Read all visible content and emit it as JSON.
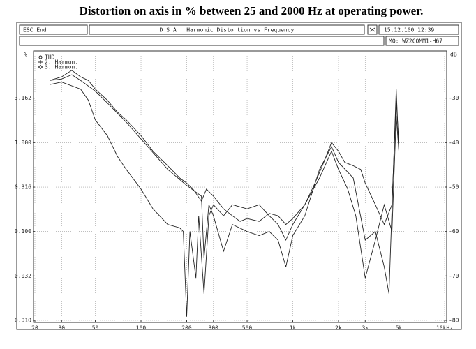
{
  "window": {
    "esc": "ESC End",
    "title": "D S A   Harmonic Distortion vs Frequency",
    "date": "15.12.100 12:39",
    "model": "MO: WZ2COMM1-H67"
  },
  "chart_data": {
    "type": "line",
    "title": "Distortion on axis in % between 25 and 2000 Hz at operating power.",
    "ylabel": "%",
    "y2label": "dB",
    "log_x": true,
    "log_y": true,
    "grid": true,
    "legend": "top-left",
    "xlim": [
      20,
      10000
    ],
    "xticks": [
      20,
      30,
      50,
      100,
      200,
      300,
      500,
      {
        "value": 1000,
        "label": "1k"
      },
      {
        "value": 2000,
        "label": "2k"
      },
      {
        "value": 3000,
        "label": "3k"
      },
      {
        "value": 5000,
        "label": "5k"
      },
      {
        "value": 10000,
        "label": "10kHz"
      }
    ],
    "ylim": [
      0.01,
      10
    ],
    "yticks": [
      {
        "value": 0.01,
        "label": "0.010"
      },
      {
        "value": 0.0316,
        "label": "0.032"
      },
      {
        "value": 0.1,
        "label": "0.100"
      },
      {
        "value": 0.316,
        "label": "0.316"
      },
      {
        "value": 1,
        "label": "1.000"
      },
      {
        "value": 3.162,
        "label": "3.162"
      }
    ],
    "y2lim": [
      -80,
      -20
    ],
    "y2ticks": [
      -80,
      -70,
      -60,
      -50,
      -40,
      -30
    ],
    "series": [
      {
        "name": "THD",
        "color": "#222222",
        "x": [
          25,
          30,
          35,
          40,
          45,
          50,
          60,
          70,
          80,
          100,
          120,
          150,
          180,
          200,
          220,
          250,
          270,
          300,
          350,
          400,
          450,
          500,
          600,
          700,
          800,
          900,
          1000,
          1200,
          1400,
          1600,
          1800,
          2000,
          2200,
          2500,
          2800,
          3000,
          3500,
          4000,
          4500,
          4800,
          5000
        ],
        "values": [
          5.0,
          5.5,
          6.5,
          5.5,
          5.0,
          4.0,
          3.0,
          2.2,
          1.8,
          1.2,
          0.8,
          0.55,
          0.4,
          0.35,
          0.3,
          0.22,
          0.3,
          0.25,
          0.18,
          0.15,
          0.13,
          0.14,
          0.13,
          0.16,
          0.15,
          0.12,
          0.14,
          0.2,
          0.35,
          0.6,
          1.0,
          0.8,
          0.6,
          0.55,
          0.5,
          0.35,
          0.2,
          0.12,
          0.2,
          3.0,
          1.0
        ]
      },
      {
        "name": "2. Harmon.",
        "color": "#222222",
        "x": [
          25,
          30,
          35,
          40,
          50,
          60,
          80,
          100,
          150,
          200,
          250,
          260,
          280,
          300,
          350,
          400,
          500,
          600,
          700,
          800,
          900,
          1000,
          1200,
          1500,
          1800,
          2000,
          2500,
          3000,
          3500,
          4000,
          4300,
          4800,
          5000
        ],
        "values": [
          5.0,
          5.2,
          5.8,
          5.0,
          3.8,
          2.8,
          1.7,
          1.1,
          0.5,
          0.33,
          0.25,
          0.05,
          0.2,
          0.15,
          0.06,
          0.12,
          0.1,
          0.09,
          0.1,
          0.08,
          0.04,
          0.09,
          0.15,
          0.5,
          0.9,
          0.6,
          0.4,
          0.08,
          0.1,
          0.04,
          0.02,
          4.0,
          0.8
        ]
      },
      {
        "name": "3. Harmon.",
        "color": "#222222",
        "x": [
          25,
          30,
          40,
          45,
          50,
          60,
          70,
          80,
          100,
          120,
          150,
          180,
          190,
          200,
          210,
          230,
          240,
          260,
          280,
          300,
          350,
          400,
          500,
          600,
          700,
          800,
          900,
          1000,
          1200,
          1500,
          1800,
          2000,
          2300,
          2600,
          3000,
          3500,
          4000,
          4500,
          4800,
          5000
        ],
        "values": [
          4.5,
          4.8,
          4.0,
          3.0,
          1.8,
          1.2,
          0.7,
          0.5,
          0.3,
          0.18,
          0.12,
          0.11,
          0.1,
          0.011,
          0.1,
          0.03,
          0.15,
          0.02,
          0.15,
          0.2,
          0.15,
          0.2,
          0.18,
          0.2,
          0.15,
          0.12,
          0.08,
          0.12,
          0.2,
          0.4,
          0.8,
          0.5,
          0.3,
          0.15,
          0.03,
          0.08,
          0.2,
          0.1,
          2.0,
          0.8
        ]
      }
    ]
  }
}
